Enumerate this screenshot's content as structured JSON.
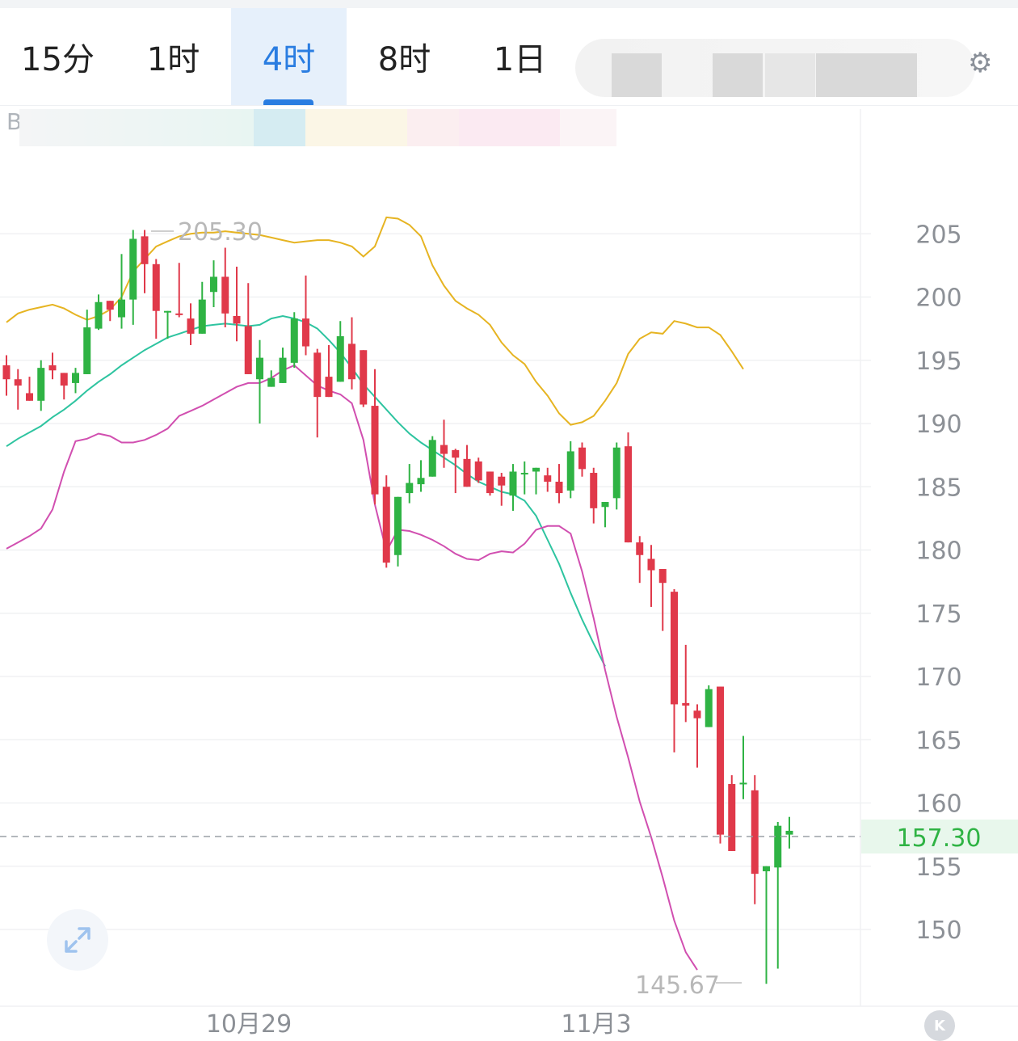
{
  "timeframe_tabs": [
    {
      "label": "15分",
      "active": false
    },
    {
      "label": "1时",
      "active": false
    },
    {
      "label": "4时",
      "active": true
    },
    {
      "label": "8时",
      "active": false
    },
    {
      "label": "1日",
      "active": false
    }
  ],
  "symbol_prefix": "BC",
  "colors": {
    "up": "#2fb344",
    "down": "#e0394a",
    "upper_band": "#e6b422",
    "middle_band": "#2ec4a0",
    "lower_band": "#d14fb0",
    "active_tab": "#2a7de1"
  },
  "icons": {
    "settings": "gear-icon",
    "expand": "expand-arrows-icon",
    "kline": "k-icon"
  },
  "kline_label": "K",
  "chart_data": {
    "type": "candlestick",
    "title": "",
    "x_tick_labels": [
      "10月29",
      "11月3"
    ],
    "y_ticks": [
      150,
      155,
      160,
      165,
      170,
      175,
      180,
      185,
      190,
      195,
      200,
      205
    ],
    "ylim": [
      145.0,
      210.0
    ],
    "grid": true,
    "high_annotation": "205.30",
    "low_annotation": "145.67",
    "current_price": "157.30",
    "candles": [
      [
        194.6,
        193.5,
        195.4,
        192.2
      ],
      [
        193.5,
        193.0,
        194.3,
        191.1
      ],
      [
        192.4,
        191.8,
        193.7,
        192.0
      ],
      [
        191.8,
        194.4,
        195.0,
        191.0
      ],
      [
        194.6,
        194.2,
        195.6,
        193.5
      ],
      [
        194.0,
        193.0,
        193.8,
        191.9
      ],
      [
        193.2,
        194.0,
        194.4,
        192.4
      ],
      [
        193.9,
        197.6,
        199.0,
        194.0
      ],
      [
        197.5,
        199.6,
        200.2,
        197.4
      ],
      [
        199.7,
        199.0,
        199.4,
        198.1
      ],
      [
        198.4,
        199.8,
        203.4,
        197.5
      ],
      [
        199.8,
        204.6,
        205.3,
        197.8
      ],
      [
        204.8,
        202.6,
        205.3,
        200.3
      ],
      [
        202.6,
        198.9,
        203.0,
        196.7
      ],
      [
        198.8,
        198.9,
        198.6,
        196.7
      ],
      [
        198.7,
        198.6,
        202.7,
        198.4
      ],
      [
        198.3,
        197.1,
        199.5,
        196.2
      ],
      [
        197.1,
        199.8,
        201.2,
        197.1
      ],
      [
        200.4,
        201.6,
        202.9,
        199.2
      ],
      [
        201.6,
        198.7,
        203.9,
        197.6
      ],
      [
        198.5,
        197.9,
        202.4,
        196.5
      ],
      [
        197.7,
        193.9,
        201.1,
        195.8
      ],
      [
        193.5,
        195.2,
        196.6,
        190.0
      ],
      [
        192.9,
        193.6,
        194.2,
        193.0
      ],
      [
        193.2,
        195.2,
        196.0,
        193.9
      ],
      [
        194.8,
        198.3,
        198.8,
        194.4
      ],
      [
        198.3,
        196.1,
        201.7,
        195.4
      ],
      [
        195.6,
        192.1,
        195.9,
        188.9
      ],
      [
        193.7,
        192.1,
        196.2,
        192.4
      ],
      [
        193.3,
        196.9,
        198.1,
        193.3
      ],
      [
        196.3,
        193.5,
        198.4,
        192.7
      ],
      [
        195.8,
        191.5,
        195.2,
        191.3
      ],
      [
        191.4,
        184.4,
        194.3,
        183.6
      ],
      [
        185.0,
        179.0,
        185.9,
        178.6
      ],
      [
        179.6,
        184.2,
        184.1,
        178.7
      ],
      [
        184.5,
        185.3,
        186.8,
        183.7
      ],
      [
        185.2,
        185.7,
        187.1,
        184.6
      ],
      [
        185.8,
        188.7,
        189.0,
        185.8
      ],
      [
        188.3,
        187.6,
        190.3,
        186.5
      ],
      [
        187.9,
        187.3,
        188.0,
        184.5
      ],
      [
        187.2,
        185.0,
        188.3,
        186.0
      ],
      [
        187.0,
        185.5,
        187.3,
        185.3
      ],
      [
        186.2,
        184.5,
        186.2,
        184.3
      ],
      [
        185.8,
        185.1,
        186.1,
        183.5
      ],
      [
        184.3,
        186.2,
        186.8,
        183.1
      ],
      [
        186.1,
        186.1,
        187.0,
        184.4
      ],
      [
        186.2,
        186.5,
        186.2,
        184.4
      ],
      [
        185.9,
        185.4,
        186.5,
        184.6
      ],
      [
        185.4,
        184.5,
        186.8,
        183.7
      ],
      [
        184.7,
        187.8,
        188.6,
        184.1
      ],
      [
        188.1,
        186.4,
        188.5,
        185.8
      ],
      [
        186.1,
        183.3,
        186.5,
        182.1
      ],
      [
        183.4,
        183.8,
        183.8,
        181.8
      ],
      [
        184.1,
        188.1,
        188.5,
        183.2
      ],
      [
        188.2,
        180.6,
        189.3,
        180.6
      ],
      [
        180.6,
        179.6,
        181.1,
        177.4
      ],
      [
        179.3,
        178.4,
        180.4,
        175.5
      ],
      [
        178.5,
        177.4,
        178.0,
        173.6
      ],
      [
        176.7,
        167.8,
        176.9,
        164.0
      ],
      [
        167.9,
        167.7,
        172.5,
        166.4
      ],
      [
        167.3,
        166.7,
        167.8,
        162.8
      ],
      [
        166.0,
        169.0,
        169.3,
        166.4
      ],
      [
        169.2,
        157.5,
        169.2,
        156.8
      ],
      [
        161.5,
        156.2,
        162.2,
        157.2
      ],
      [
        161.6,
        161.6,
        165.3,
        160.3
      ],
      [
        161.0,
        154.4,
        162.2,
        152.0
      ],
      [
        154.6,
        155.0,
        154.8,
        145.7
      ],
      [
        154.9,
        158.2,
        158.5,
        146.9
      ],
      [
        157.5,
        157.8,
        158.9,
        156.4
      ]
    ],
    "bands": {
      "upper": [
        [
          0,
          198
        ],
        [
          1,
          198.7
        ],
        [
          2,
          199
        ],
        [
          3,
          199.2
        ],
        [
          4,
          199.4
        ],
        [
          5,
          199.1
        ],
        [
          6,
          198.6
        ],
        [
          7,
          198.2
        ],
        [
          8,
          198.5
        ],
        [
          9,
          199
        ],
        [
          10,
          200
        ],
        [
          11,
          202
        ],
        [
          12,
          203
        ],
        [
          13,
          204
        ],
        [
          14,
          204.4
        ],
        [
          15,
          204.8
        ],
        [
          16,
          205
        ],
        [
          17,
          205.1
        ],
        [
          18,
          205.1
        ],
        [
          19,
          205.2
        ],
        [
          20,
          205.1
        ],
        [
          21,
          205
        ],
        [
          22,
          204.9
        ],
        [
          23,
          204.7
        ],
        [
          24,
          204.5
        ],
        [
          25,
          204.3
        ],
        [
          26,
          204.4
        ],
        [
          27,
          204.5
        ],
        [
          28,
          204.5
        ],
        [
          29,
          204.3
        ],
        [
          30,
          204
        ],
        [
          31,
          203.2
        ],
        [
          32,
          204
        ],
        [
          33,
          206.3
        ],
        [
          34,
          206.2
        ],
        [
          35,
          205.7
        ],
        [
          36,
          204.8
        ],
        [
          37,
          202.5
        ],
        [
          38,
          200.9
        ],
        [
          39,
          199.7
        ],
        [
          40,
          199.1
        ],
        [
          41,
          198.6
        ],
        [
          42,
          197.8
        ],
        [
          43,
          196.4
        ],
        [
          44,
          195.4
        ],
        [
          45,
          194.7
        ],
        [
          46,
          193.3
        ],
        [
          47,
          192.2
        ],
        [
          48,
          190.8
        ],
        [
          49,
          189.9
        ],
        [
          50,
          190.1
        ],
        [
          51,
          190.6
        ],
        [
          52,
          191.8
        ],
        [
          53,
          193.2
        ],
        [
          54,
          195.5
        ],
        [
          55,
          196.7
        ],
        [
          56,
          197.2
        ],
        [
          57,
          197.1
        ],
        [
          58,
          198.1
        ],
        [
          59,
          197.9
        ],
        [
          60,
          197.6
        ],
        [
          61,
          197.6
        ],
        [
          62,
          197.0
        ],
        [
          63,
          195.7
        ],
        [
          64,
          194.3
        ]
      ],
      "middle": [
        [
          0,
          188.2
        ],
        [
          1,
          188.8
        ],
        [
          2,
          189.3
        ],
        [
          3,
          189.8
        ],
        [
          4,
          190.5
        ],
        [
          5,
          191.1
        ],
        [
          6,
          191.8
        ],
        [
          7,
          192.6
        ],
        [
          8,
          193.3
        ],
        [
          9,
          193.9
        ],
        [
          10,
          194.6
        ],
        [
          11,
          195.2
        ],
        [
          12,
          195.8
        ],
        [
          13,
          196.3
        ],
        [
          14,
          196.8
        ],
        [
          15,
          197.1
        ],
        [
          16,
          197.4
        ],
        [
          17,
          197.7
        ],
        [
          18,
          197.8
        ],
        [
          19,
          197.9
        ],
        [
          20,
          197.8
        ],
        [
          21,
          197.7
        ],
        [
          22,
          197.8
        ],
        [
          23,
          198.3
        ],
        [
          24,
          198.5
        ],
        [
          25,
          198.3
        ],
        [
          26,
          198
        ],
        [
          27,
          197.5
        ],
        [
          28,
          196.6
        ],
        [
          29,
          195.6
        ],
        [
          30,
          194.4
        ],
        [
          31,
          193.1
        ],
        [
          32,
          192.1
        ],
        [
          33,
          191.1
        ],
        [
          34,
          190.1
        ],
        [
          35,
          189.2
        ],
        [
          36,
          188.5
        ],
        [
          37,
          187.9
        ],
        [
          38,
          187.3
        ],
        [
          39,
          186.7
        ],
        [
          40,
          186
        ],
        [
          41,
          185.4
        ],
        [
          42,
          185
        ],
        [
          43,
          184.6
        ],
        [
          44,
          184.4
        ],
        [
          45,
          183.9
        ],
        [
          46,
          182.7
        ],
        [
          47,
          180.8
        ],
        [
          48,
          178.9
        ],
        [
          49,
          176.6
        ],
        [
          50,
          174.5
        ],
        [
          51,
          172.6
        ],
        [
          52,
          170.8
        ]
      ],
      "lower": [
        [
          0,
          180.1
        ],
        [
          1,
          180.6
        ],
        [
          2,
          181.1
        ],
        [
          3,
          181.7
        ],
        [
          4,
          183.2
        ],
        [
          5,
          186.2
        ],
        [
          6,
          188.6
        ],
        [
          7,
          188.8
        ],
        [
          8,
          189.2
        ],
        [
          9,
          189
        ],
        [
          10,
          188.5
        ],
        [
          11,
          188.5
        ],
        [
          12,
          188.7
        ],
        [
          13,
          189.1
        ],
        [
          14,
          189.6
        ],
        [
          15,
          190.6
        ],
        [
          16,
          191
        ],
        [
          17,
          191.4
        ],
        [
          18,
          191.9
        ],
        [
          19,
          192.4
        ],
        [
          20,
          192.9
        ],
        [
          21,
          193.2
        ],
        [
          22,
          193.2
        ],
        [
          23,
          193.6
        ],
        [
          24,
          194.2
        ],
        [
          25,
          194.6
        ],
        [
          26,
          193.8
        ],
        [
          27,
          193
        ],
        [
          28,
          192.6
        ],
        [
          29,
          192.3
        ],
        [
          30,
          191.6
        ],
        [
          31,
          188.7
        ],
        [
          32,
          183.6
        ],
        [
          33,
          179.9
        ],
        [
          34,
          181.6
        ],
        [
          35,
          181.5
        ],
        [
          36,
          181.2
        ],
        [
          37,
          180.8
        ],
        [
          38,
          180.3
        ],
        [
          39,
          179.7
        ],
        [
          40,
          179.3
        ],
        [
          41,
          179.2
        ],
        [
          42,
          179.7
        ],
        [
          43,
          179.9
        ],
        [
          44,
          179.8
        ],
        [
          45,
          180.5
        ],
        [
          46,
          181.6
        ],
        [
          47,
          181.9
        ],
        [
          48,
          181.9
        ],
        [
          49,
          181.3
        ],
        [
          50,
          178.3
        ],
        [
          51,
          174.6
        ],
        [
          52,
          170.5
        ],
        [
          53,
          166.8
        ],
        [
          54,
          163.6
        ],
        [
          55,
          160.1
        ],
        [
          56,
          157.3
        ],
        [
          57,
          154.1
        ],
        [
          58,
          150.7
        ],
        [
          59,
          148.2
        ],
        [
          60,
          146.8
        ]
      ]
    }
  }
}
